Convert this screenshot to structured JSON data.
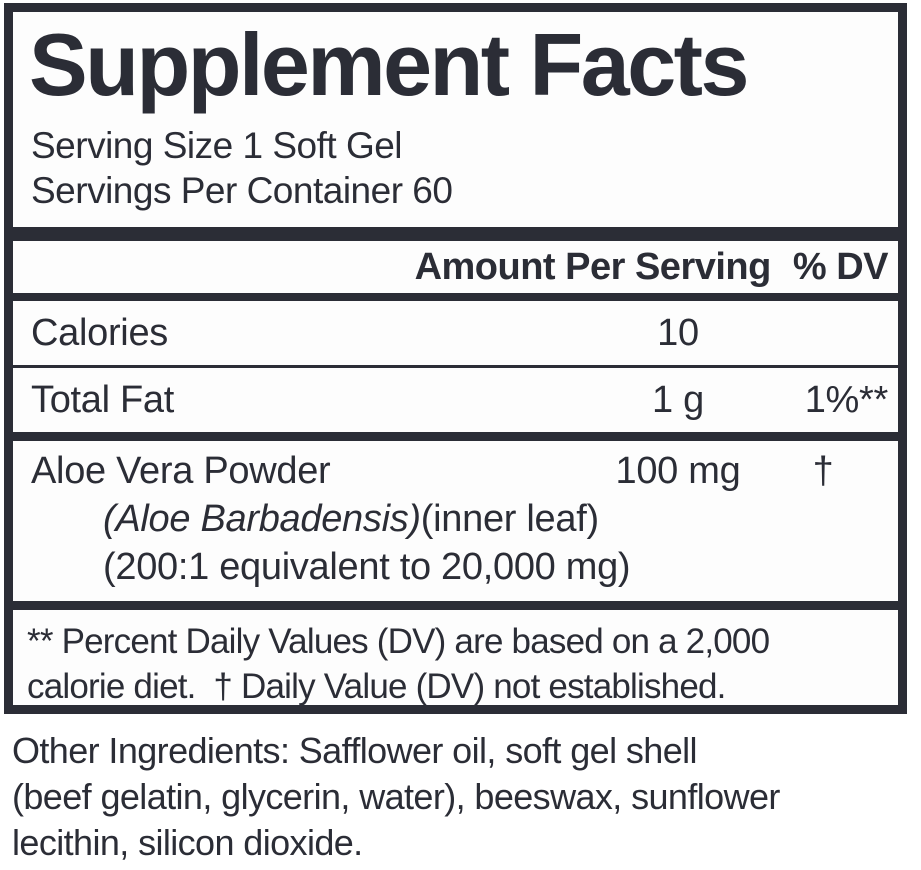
{
  "panel": {
    "title": "Supplement Facts",
    "serving_size": "Serving Size 1 Soft Gel",
    "servings_per_container": "Servings Per Container 60",
    "header": {
      "amount": "Amount Per Serving",
      "dv": "% DV"
    },
    "rows": [
      {
        "name": "Calories",
        "amount": "10",
        "dv": ""
      },
      {
        "name": "Total Fat",
        "amount": "1 g",
        "dv": "1%**"
      }
    ],
    "ingredient": {
      "name": "Aloe Vera Powder",
      "amount": "100 mg",
      "dv": "†",
      "sub_line_1_italic": "(Aloe Barbadensis)",
      "sub_line_1_rest": "(inner leaf)",
      "sub_line_2": "(200:1 equivalent to 20,000 mg)"
    },
    "footnote_lines": [
      "** Percent Daily Values (DV) are based on a 2,000",
      "calorie diet.  † Daily Value (DV) not established."
    ]
  },
  "other_ingredients_lines": [
    "Other Ingredients: Safflower oil, soft gel shell",
    "(beef gelatin, glycerin, water), beeswax, sunflower",
    "lecithin, silicon dioxide."
  ],
  "colors": {
    "ink": "#2b2d36",
    "background": "#fdfdfd"
  }
}
